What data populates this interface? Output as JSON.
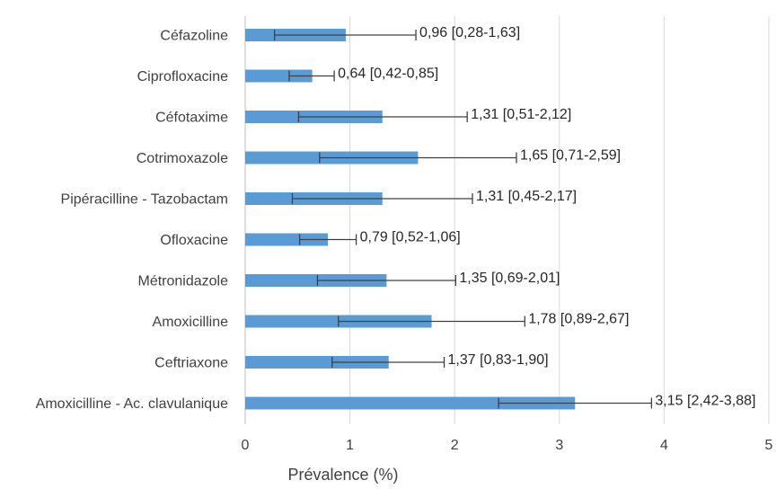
{
  "chart_data": {
    "type": "bar",
    "orientation": "horizontal",
    "xlabel": "Prévalence (%)",
    "xlim": [
      0,
      5
    ],
    "xticks": [
      0,
      1,
      2,
      3,
      4,
      5
    ],
    "grid": true,
    "bar_color": "#5B9BD5",
    "error_color": "#404040",
    "categories": [
      "Céfazoline",
      "Ciprofloxacine",
      "Céfotaxime",
      "Cotrimoxazole",
      "Pipéracilline - Tazobactam",
      "Ofloxacine",
      "Métronidazole",
      "Amoxicilline",
      "Ceftriaxone",
      "Amoxicilline - Ac. clavulanique"
    ],
    "values": [
      0.96,
      0.64,
      1.31,
      1.65,
      1.31,
      0.79,
      1.35,
      1.78,
      1.37,
      3.15
    ],
    "ci_low": [
      0.28,
      0.42,
      0.51,
      0.71,
      0.45,
      0.52,
      0.69,
      0.89,
      0.83,
      2.42
    ],
    "ci_high": [
      1.63,
      0.85,
      2.12,
      2.59,
      2.17,
      1.06,
      2.01,
      2.67,
      1.9,
      3.88
    ],
    "data_labels": [
      "0,96 [0,28-1,63]",
      "0,64 [0,42-0,85]",
      "1,31 [0,51-2,12]",
      "1,65 [0,71-2,59]",
      "1,31 [0,45-2,17]",
      "0,79 [0,52-1,06]",
      "1,35 [0,69-2,01]",
      "1,78 [0,89-2,67]",
      "1,37 [0,83-1,90]",
      "3,15 [2,42-3,88]"
    ]
  }
}
